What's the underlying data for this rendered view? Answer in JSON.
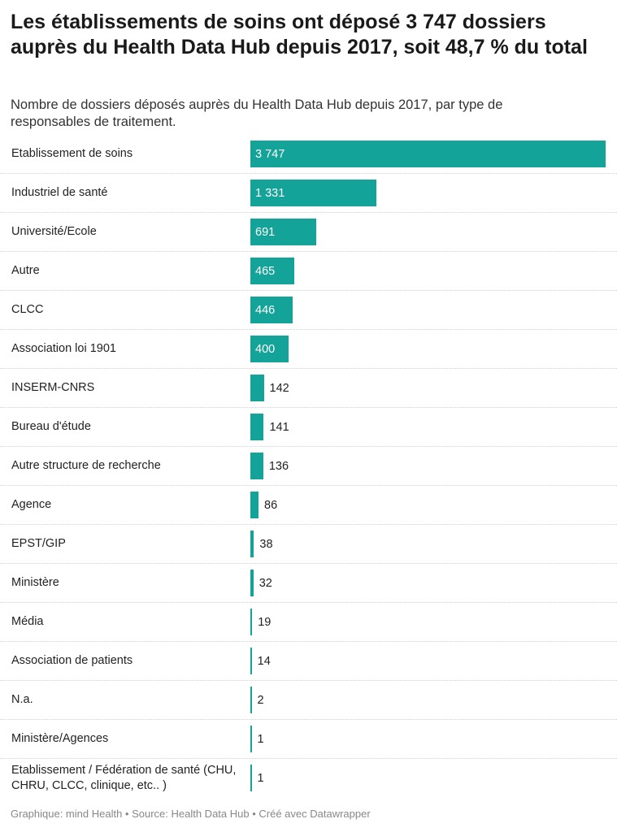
{
  "chart_data": {
    "type": "bar",
    "orientation": "horizontal",
    "title": "Les établissements de soins ont déposé 3 747 dossiers auprès du Health Data Hub depuis 2017, soit 48,7 % du total",
    "subtitle": "Nombre de dossiers déposés auprès du Health Data Hub depuis 2017, par type de responsables de traitement.",
    "categories": [
      "Etablissement de soins",
      "Industriel de santé",
      "Université/Ecole",
      "Autre",
      "CLCC",
      "Association loi 1901",
      "INSERM-CNRS",
      "Bureau d'étude",
      "Autre structure de recherche",
      "Agence",
      "EPST/GIP",
      "Ministère",
      "Média",
      "Association de patients",
      "N.a.",
      "Ministère/Agences",
      "Etablissement / Fédération de santé (CHU, CHRU, CLCC, clinique, etc..  )"
    ],
    "values": [
      3747,
      1331,
      691,
      465,
      446,
      400,
      142,
      141,
      136,
      86,
      38,
      32,
      19,
      14,
      2,
      1,
      1
    ],
    "value_labels": [
      "3 747",
      "1 331",
      "691",
      "465",
      "446",
      "400",
      "142",
      "141",
      "136",
      "86",
      "38",
      "32",
      "19",
      "14",
      "2",
      "1",
      "1"
    ],
    "color": "#13a398",
    "footer": "Graphique: mind Health • Source: Health Data Hub • Créé avec Datawrapper"
  }
}
